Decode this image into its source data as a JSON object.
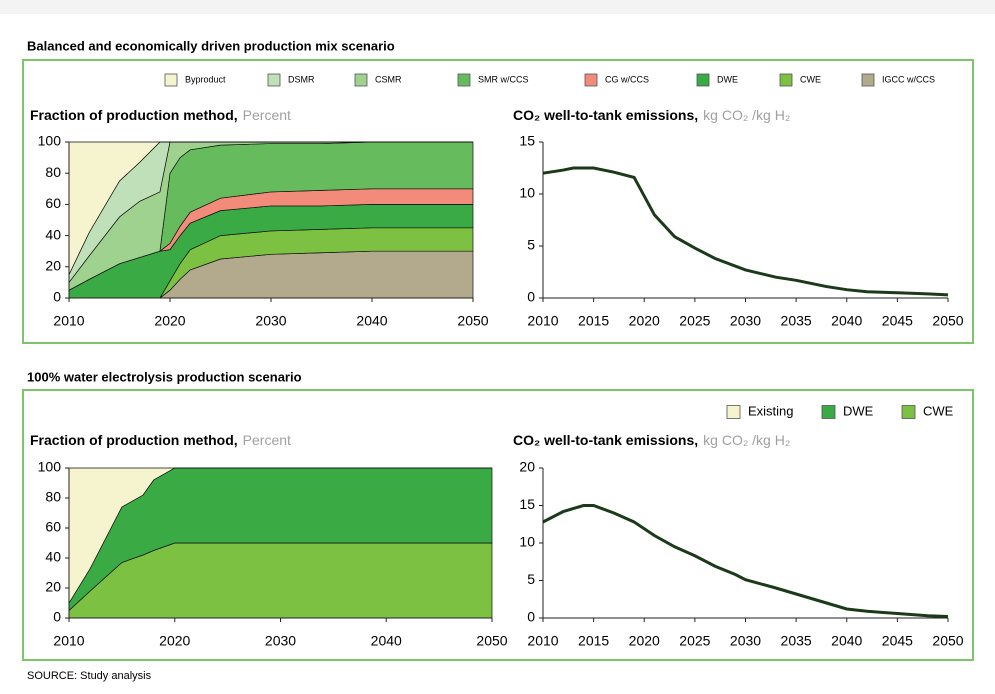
{
  "panels": [
    "Balanced and economically driven production mix scenario",
    "100% water electrolysis production scenario"
  ],
  "source": "SOURCE: Study analysis",
  "chart_data": [
    {
      "type": "area",
      "stacked": true,
      "title": "Fraction of production method,",
      "units": "Percent",
      "x": [
        2010,
        2012,
        2015,
        2017,
        2019,
        2020,
        2021,
        2022,
        2025,
        2030,
        2035,
        2040,
        2050
      ],
      "series": [
        {
          "name": "IGCC w/CCS",
          "color": "#b3a98d",
          "values": [
            0,
            0,
            0,
            0,
            0,
            5,
            12,
            18,
            25,
            28,
            29,
            30,
            30
          ]
        },
        {
          "name": "CWE",
          "color": "#7cc142",
          "values": [
            0,
            0,
            0,
            0,
            0,
            6,
            10,
            13,
            15,
            15,
            15,
            15,
            15
          ]
        },
        {
          "name": "DWE",
          "color": "#3aaa45",
          "values": [
            5,
            12,
            22,
            26,
            30,
            20,
            18,
            17,
            16,
            16,
            15,
            15,
            15
          ]
        },
        {
          "name": "CG w/CCS",
          "color": "#f28b7a",
          "values": [
            0,
            0,
            0,
            0,
            0,
            4,
            6,
            7,
            8,
            9,
            10,
            10,
            10
          ]
        },
        {
          "name": "SMR w/CCS",
          "color": "#66bb5c",
          "values": [
            0,
            0,
            0,
            0,
            0,
            45,
            44,
            40,
            34,
            31,
            30,
            30,
            30
          ]
        },
        {
          "name": "CSMR",
          "color": "#9fd28f",
          "values": [
            5,
            15,
            30,
            36,
            38,
            20,
            10,
            5,
            2,
            1,
            1,
            0,
            0
          ]
        },
        {
          "name": "DSMR",
          "color": "#bfe0b8",
          "values": [
            5,
            15,
            23,
            25,
            32,
            0,
            0,
            0,
            0,
            0,
            0,
            0,
            0
          ]
        },
        {
          "name": "Byproduct",
          "color": "#f6f3cf",
          "values": [
            85,
            58,
            25,
            13,
            0,
            0,
            0,
            0,
            0,
            0,
            0,
            0,
            0
          ]
        }
      ],
      "xlim": [
        2010,
        2050
      ],
      "xticks": [
        2010,
        2020,
        2030,
        2040,
        2050
      ],
      "ylim": [
        0,
        100
      ],
      "yticks": [
        0,
        20,
        40,
        60,
        80,
        100
      ]
    },
    {
      "type": "line",
      "title": "CO₂ well-to-tank emissions,",
      "units": "kg CO₂ /kg H₂",
      "color": "#1a3a1a",
      "x": [
        2010,
        2012,
        2013,
        2015,
        2017,
        2019,
        2021,
        2023,
        2025,
        2027,
        2030,
        2033,
        2035,
        2038,
        2040,
        2042,
        2045,
        2048,
        2050
      ],
      "values": [
        12,
        12.3,
        12.5,
        12.5,
        12.1,
        11.6,
        8,
        5.9,
        4.8,
        3.8,
        2.7,
        2.0,
        1.7,
        1.1,
        0.8,
        0.6,
        0.5,
        0.4,
        0.3
      ],
      "xlim": [
        2010,
        2050
      ],
      "xticks": [
        2010,
        2015,
        2020,
        2025,
        2030,
        2035,
        2040,
        2045,
        2050
      ],
      "ylim": [
        0,
        15
      ],
      "yticks": [
        0,
        5,
        10,
        15
      ]
    },
    {
      "type": "area",
      "stacked": true,
      "title": "Fraction of production method,",
      "units": "Percent",
      "x": [
        2010,
        2012,
        2015,
        2017,
        2018,
        2020,
        2050
      ],
      "series": [
        {
          "name": "CWE",
          "color": "#7cc142",
          "values": [
            5,
            18,
            37,
            42,
            45,
            50,
            50
          ]
        },
        {
          "name": "DWE",
          "color": "#3aaa45",
          "values": [
            5,
            15,
            37,
            40,
            47,
            50,
            50
          ]
        },
        {
          "name": "Existing",
          "color": "#f6f3cf",
          "values": [
            90,
            67,
            26,
            18,
            8,
            0,
            0
          ]
        }
      ],
      "xlim": [
        2010,
        2050
      ],
      "xticks": [
        2010,
        2020,
        2030,
        2040,
        2050
      ],
      "ylim": [
        0,
        100
      ],
      "yticks": [
        0,
        20,
        40,
        60,
        80,
        100
      ]
    },
    {
      "type": "line",
      "title": "CO₂ well-to-tank emissions,",
      "units": "kg CO₂ /kg H₂",
      "color": "#1a3a1a",
      "x": [
        2010,
        2012,
        2014,
        2015,
        2017,
        2019,
        2021,
        2023,
        2025,
        2027,
        2029,
        2030,
        2033,
        2035,
        2038,
        2040,
        2042,
        2045,
        2048,
        2050
      ],
      "values": [
        12.8,
        14.2,
        15.0,
        15.0,
        14.0,
        12.8,
        11.0,
        9.5,
        8.3,
        6.9,
        5.8,
        5.1,
        4.0,
        3.2,
        2.0,
        1.2,
        0.9,
        0.6,
        0.3,
        0.2
      ],
      "xlim": [
        2010,
        2050
      ],
      "xticks": [
        2010,
        2015,
        2020,
        2025,
        2030,
        2035,
        2040,
        2045,
        2050
      ],
      "ylim": [
        0,
        20
      ],
      "yticks": [
        0,
        5,
        10,
        15,
        20
      ]
    }
  ]
}
